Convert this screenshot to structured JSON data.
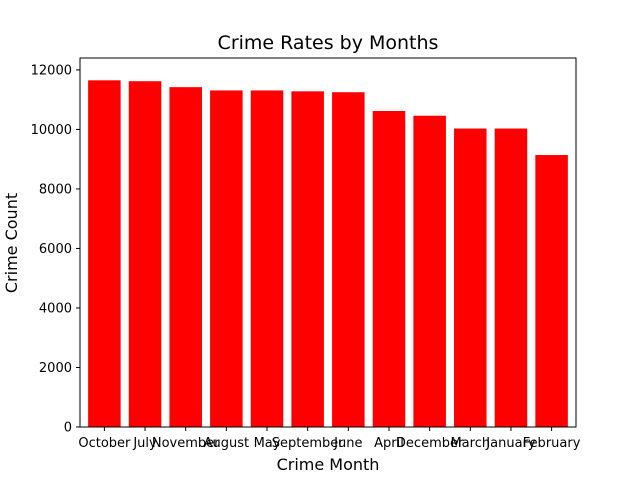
{
  "chart_data": {
    "type": "bar",
    "title": "Crime Rates by Months",
    "xlabel": "Crime Month",
    "ylabel": "Crime Count",
    "categories": [
      "October",
      "July",
      "November",
      "August",
      "May",
      "September",
      "June",
      "April",
      "December",
      "March",
      "January",
      "February"
    ],
    "values": [
      11650,
      11620,
      11420,
      11310,
      11310,
      11280,
      11250,
      10620,
      10460,
      10030,
      10030,
      9140
    ],
    "ylim": [
      0,
      12400
    ],
    "yticks": [
      0,
      2000,
      4000,
      6000,
      8000,
      10000,
      12000
    ],
    "bar_color": "#ff0000",
    "grid": false,
    "legend": "none"
  }
}
